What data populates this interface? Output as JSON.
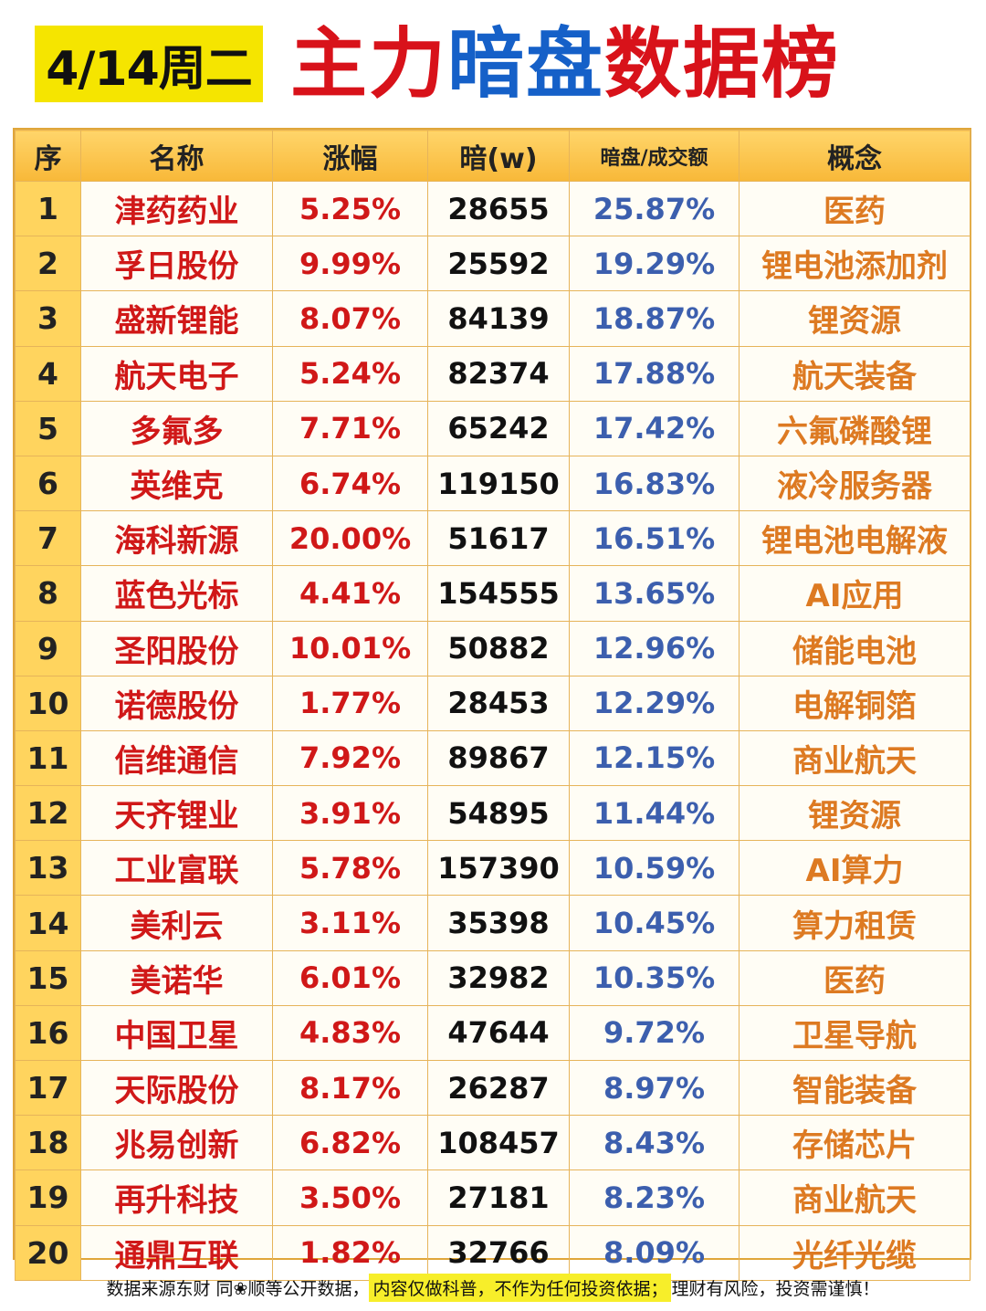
{
  "header": {
    "date": "4/14周二",
    "title_part1": "主力",
    "title_part2": "暗盘",
    "title_part3": "数据榜"
  },
  "table": {
    "columns": [
      "序",
      "名称",
      "涨幅",
      "暗(w)",
      "暗盘/成交额",
      "概念"
    ],
    "rows": [
      {
        "rank": "1",
        "name": "津药药业",
        "change": "5.25%",
        "amount": "28655",
        "ratio": "25.87%",
        "concept": "医药"
      },
      {
        "rank": "2",
        "name": "孚日股份",
        "change": "9.99%",
        "amount": "25592",
        "ratio": "19.29%",
        "concept": "锂电池添加剂"
      },
      {
        "rank": "3",
        "name": "盛新锂能",
        "change": "8.07%",
        "amount": "84139",
        "ratio": "18.87%",
        "concept": "锂资源"
      },
      {
        "rank": "4",
        "name": "航天电子",
        "change": "5.24%",
        "amount": "82374",
        "ratio": "17.88%",
        "concept": "航天装备"
      },
      {
        "rank": "5",
        "name": "多氟多",
        "change": "7.71%",
        "amount": "65242",
        "ratio": "17.42%",
        "concept": "六氟磷酸锂"
      },
      {
        "rank": "6",
        "name": "英维克",
        "change": "6.74%",
        "amount": "119150",
        "ratio": "16.83%",
        "concept": "液冷服务器"
      },
      {
        "rank": "7",
        "name": "海科新源",
        "change": "20.00%",
        "amount": "51617",
        "ratio": "16.51%",
        "concept": "锂电池电解液"
      },
      {
        "rank": "8",
        "name": "蓝色光标",
        "change": "4.41%",
        "amount": "154555",
        "ratio": "13.65%",
        "concept": "AI应用"
      },
      {
        "rank": "9",
        "name": "圣阳股份",
        "change": "10.01%",
        "amount": "50882",
        "ratio": "12.96%",
        "concept": "储能电池"
      },
      {
        "rank": "10",
        "name": "诺德股份",
        "change": "1.77%",
        "amount": "28453",
        "ratio": "12.29%",
        "concept": "电解铜箔"
      },
      {
        "rank": "11",
        "name": "信维通信",
        "change": "7.92%",
        "amount": "89867",
        "ratio": "12.15%",
        "concept": "商业航天"
      },
      {
        "rank": "12",
        "name": "天齐锂业",
        "change": "3.91%",
        "amount": "54895",
        "ratio": "11.44%",
        "concept": "锂资源"
      },
      {
        "rank": "13",
        "name": "工业富联",
        "change": "5.78%",
        "amount": "157390",
        "ratio": "10.59%",
        "concept": "AI算力"
      },
      {
        "rank": "14",
        "name": "美利云",
        "change": "3.11%",
        "amount": "35398",
        "ratio": "10.45%",
        "concept": "算力租赁"
      },
      {
        "rank": "15",
        "name": "美诺华",
        "change": "6.01%",
        "amount": "32982",
        "ratio": "10.35%",
        "concept": "医药"
      },
      {
        "rank": "16",
        "name": "中国卫星",
        "change": "4.83%",
        "amount": "47644",
        "ratio": "9.72%",
        "concept": "卫星导航"
      },
      {
        "rank": "17",
        "name": "天际股份",
        "change": "8.17%",
        "amount": "26287",
        "ratio": "8.97%",
        "concept": "智能装备"
      },
      {
        "rank": "18",
        "name": "兆易创新",
        "change": "6.82%",
        "amount": "108457",
        "ratio": "8.43%",
        "concept": "存储芯片"
      },
      {
        "rank": "19",
        "name": "再升科技",
        "change": "3.50%",
        "amount": "27181",
        "ratio": "8.23%",
        "concept": "商业航天"
      },
      {
        "rank": "20",
        "name": "通鼎互联",
        "change": "1.82%",
        "amount": "32766",
        "ratio": "8.09%",
        "concept": "光纤光缆"
      }
    ]
  },
  "footer": {
    "text1": "数据来源东财 同❀顺等公开数据，",
    "highlight": "内容仅做科普，不作为任何投资依据；",
    "text2": "理财有风险，投资需谨慎！"
  }
}
